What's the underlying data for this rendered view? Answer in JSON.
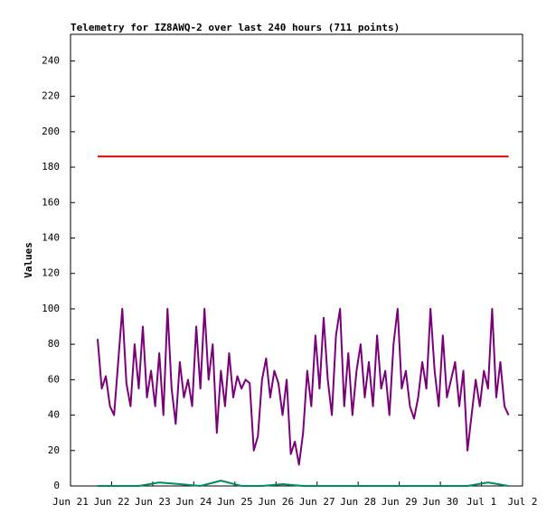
{
  "chart_data": {
    "type": "line",
    "title": "Telemetry for IZ8AWQ-2 over last 240 hours (711 points)",
    "y_label": "Values",
    "xlim": [
      0,
      11
    ],
    "xticks": [
      {
        "value": 0,
        "label": "Jun 21"
      },
      {
        "value": 1,
        "label": "Jun 22"
      },
      {
        "value": 2,
        "label": "Jun 23"
      },
      {
        "value": 3,
        "label": "Jun 24"
      },
      {
        "value": 4,
        "label": "Jun 25"
      },
      {
        "value": 5,
        "label": "Jun 26"
      },
      {
        "value": 6,
        "label": "Jun 27"
      },
      {
        "value": 7,
        "label": "Jun 28"
      },
      {
        "value": 8,
        "label": "Jun 29"
      },
      {
        "value": 9,
        "label": "Jun 30"
      },
      {
        "value": 10,
        "label": "Jul 1"
      },
      {
        "value": 11,
        "label": "Jul 2"
      }
    ],
    "ylim": [
      0,
      255
    ],
    "yticks": [
      0,
      20,
      40,
      60,
      80,
      100,
      120,
      140,
      160,
      180,
      200,
      220,
      240
    ],
    "series": [
      {
        "color": "#e00000",
        "x": [
          0.66,
          10.66
        ],
        "values": [
          186,
          186
        ]
      },
      {
        "color": "#7a007a",
        "x": [
          0.66,
          0.76,
          0.86,
          0.96,
          1.06,
          1.16,
          1.26,
          1.36,
          1.46,
          1.56,
          1.66,
          1.76,
          1.86,
          1.96,
          2.06,
          2.16,
          2.26,
          2.36,
          2.46,
          2.56,
          2.66,
          2.76,
          2.86,
          2.96,
          3.06,
          3.16,
          3.26,
          3.36,
          3.46,
          3.56,
          3.66,
          3.76,
          3.86,
          3.96,
          4.06,
          4.16,
          4.26,
          4.36,
          4.46,
          4.56,
          4.66,
          4.76,
          4.86,
          4.96,
          5.06,
          5.16,
          5.26,
          5.36,
          5.46,
          5.56,
          5.66,
          5.76,
          5.86,
          5.96,
          6.06,
          6.16,
          6.26,
          6.36,
          6.46,
          6.56,
          6.66,
          6.76,
          6.86,
          6.96,
          7.06,
          7.16,
          7.26,
          7.36,
          7.46,
          7.56,
          7.66,
          7.76,
          7.86,
          7.96,
          8.06,
          8.16,
          8.26,
          8.36,
          8.46,
          8.56,
          8.66,
          8.76,
          8.86,
          8.96,
          9.06,
          9.16,
          9.26,
          9.36,
          9.46,
          9.56,
          9.66,
          9.76,
          9.86,
          9.96,
          10.06,
          10.16,
          10.26,
          10.36,
          10.46,
          10.56,
          10.66
        ],
        "values": [
          83,
          55,
          62,
          45,
          40,
          70,
          100,
          58,
          45,
          80,
          55,
          90,
          50,
          65,
          45,
          75,
          40,
          100,
          55,
          35,
          70,
          50,
          60,
          45,
          90,
          55,
          100,
          60,
          80,
          30,
          65,
          45,
          75,
          50,
          62,
          55,
          60,
          58,
          20,
          28,
          60,
          72,
          50,
          65,
          58,
          40,
          60,
          18,
          25,
          12,
          30,
          65,
          45,
          85,
          55,
          95,
          60,
          40,
          85,
          100,
          45,
          75,
          40,
          65,
          80,
          50,
          70,
          45,
          85,
          55,
          65,
          40,
          80,
          100,
          55,
          65,
          45,
          38,
          50,
          70,
          55,
          100,
          65,
          45,
          85,
          50,
          60,
          70,
          45,
          65,
          20,
          40,
          60,
          45,
          65,
          55,
          100,
          50,
          70,
          45,
          40
        ]
      },
      {
        "color": "#008c5a",
        "x": [
          0.66,
          1.16,
          1.66,
          2.16,
          2.66,
          3.16,
          3.66,
          4.16,
          4.66,
          5.16,
          5.66,
          6.16,
          6.66,
          7.16,
          7.66,
          8.16,
          8.66,
          9.16,
          9.66,
          10.16,
          10.66
        ],
        "values": [
          0,
          0,
          0,
          2,
          1,
          0,
          3,
          0,
          0,
          1,
          0,
          0,
          0,
          0,
          0,
          0,
          0,
          0,
          0,
          2,
          0
        ]
      }
    ]
  }
}
